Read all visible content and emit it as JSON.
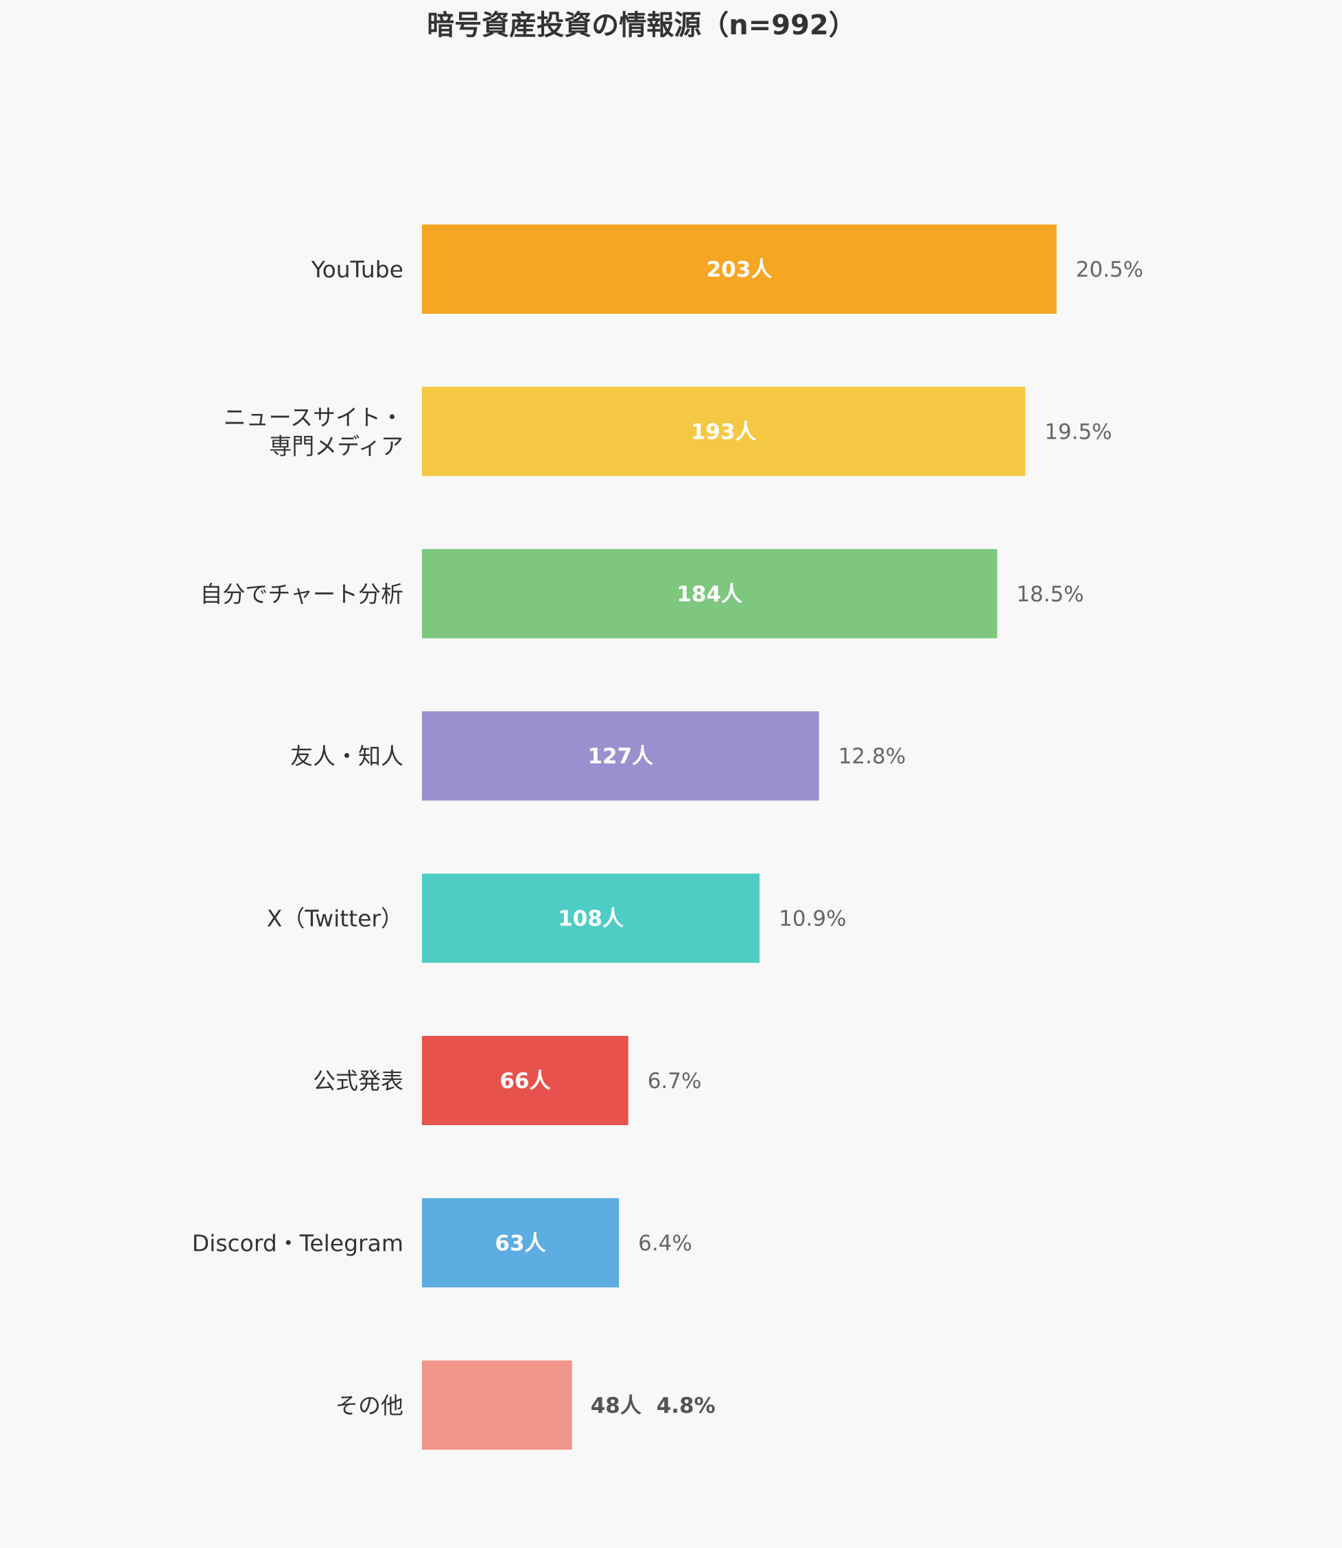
{
  "chart_data": {
    "type": "bar",
    "orientation": "horizontal",
    "title": "暗号資産投資の情報源（n=992）",
    "count_suffix": "人",
    "categories": [
      [
        "YouTube"
      ],
      [
        "ニュースサイト・",
        "専門メディア"
      ],
      [
        "自分でチャート分析"
      ],
      [
        "友人・知人"
      ],
      [
        "X（Twitter）"
      ],
      [
        "公式発表"
      ],
      [
        "Discord・Telegram"
      ],
      [
        "その他"
      ]
    ],
    "values": [
      203,
      193,
      184,
      127,
      108,
      66,
      63,
      48
    ],
    "percentages": [
      "20.5%",
      "19.5%",
      "18.5%",
      "12.8%",
      "10.9%",
      "6.7%",
      "6.4%",
      "4.8%"
    ],
    "colors": [
      "#F5A623",
      "#F4C842",
      "#7FC77F",
      "#9B90CF",
      "#4FCDC4",
      "#E8524D",
      "#5DACE2",
      "#F0958A"
    ],
    "xlim": [
      0,
      203
    ],
    "grid": false,
    "legend": "none"
  }
}
